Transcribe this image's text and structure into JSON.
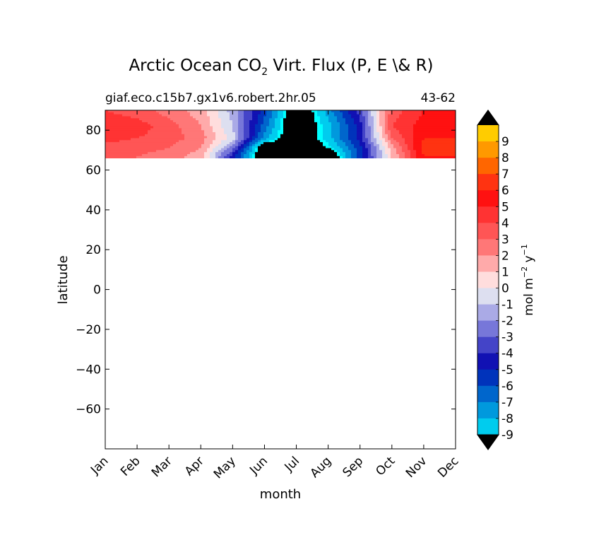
{
  "chart_data": {
    "type": "heatmap",
    "title_prefix": "Arctic Ocean CO",
    "title_subscript": "2",
    "title_suffix": " Virt. Flux (P, E \\& R)",
    "subtitle_left": "giaf.eco.c15b7.gx1v6.robert.2hr.05",
    "subtitle_right": "43-62",
    "xlabel": "month",
    "ylabel": "latitude",
    "x_categories": [
      "Jan",
      "Feb",
      "Mar",
      "Apr",
      "May",
      "Jun",
      "Jul",
      "Aug",
      "Sep",
      "Oct",
      "Nov",
      "Dec"
    ],
    "xlim": [
      1,
      12
    ],
    "ylim": [
      -80,
      90
    ],
    "yticks": [
      80,
      60,
      40,
      20,
      0,
      -20,
      -40,
      -60
    ],
    "ytick_labels": [
      "80",
      "60",
      "40",
      "20",
      "0",
      "−20",
      "−40",
      "−60"
    ],
    "data_lat_range": [
      66,
      90
    ],
    "colorbar": {
      "label": "mol m",
      "label_exp1": "−2",
      "label_mid": " y",
      "label_exp2": "−1",
      "levels": [
        "9",
        "8",
        "7",
        "6",
        "5",
        "4",
        "3",
        "2",
        "1",
        "0",
        "-1",
        "-2",
        "-3",
        "-4",
        "-5",
        "-6",
        "-7",
        "-8",
        "-9"
      ],
      "colors": [
        "#ffff00",
        "#ffcc00",
        "#ff9900",
        "#ff6600",
        "#ff3311",
        "#ff1111",
        "#ff3333",
        "#ff5555",
        "#ff7777",
        "#ffaaaa",
        "#ffdddd",
        "#dddff0",
        "#aaaae6",
        "#7777d9",
        "#4444c8",
        "#1111b3",
        "#0033bb",
        "#0066cc",
        "#0099dd",
        "#00ccee",
        "#00ffff"
      ],
      "color_note": "ordered top(over) to bottom(under); extend arrows both ends"
    },
    "series": [
      {
        "name": "",
        "lat": 90,
        "values": [
          3.5,
          3.0,
          2.0,
          1.0,
          -2.0,
          -6.0,
          -12.0,
          -8.0,
          -4.0,
          3.0,
          4.5,
          4.5
        ]
      },
      {
        "name": "",
        "lat": 82,
        "values": [
          4.2,
          4.0,
          3.0,
          1.5,
          -1.5,
          -7.0,
          -12.0,
          -9.0,
          -5.0,
          3.5,
          5.0,
          5.0
        ]
      },
      {
        "name": "",
        "lat": 76,
        "values": [
          3.8,
          3.5,
          3.0,
          2.0,
          -1.0,
          -8.0,
          -12.0,
          -9.0,
          -5.0,
          2.5,
          5.5,
          5.5
        ]
      },
      {
        "name": "",
        "lat": 71,
        "values": [
          3.2,
          3.0,
          2.5,
          1.5,
          -3.0,
          -12.0,
          -12.0,
          -10.0,
          -6.0,
          1.0,
          6.0,
          6.0
        ]
      },
      {
        "name": "",
        "lat": 67,
        "values": [
          2.8,
          2.5,
          2.0,
          1.0,
          -5.0,
          -12.0,
          -12.0,
          -12.0,
          -6.0,
          0.5,
          5.5,
          5.5
        ]
      }
    ],
    "masked_color": "#000000",
    "masked_note": "values below -10 rendered black"
  }
}
